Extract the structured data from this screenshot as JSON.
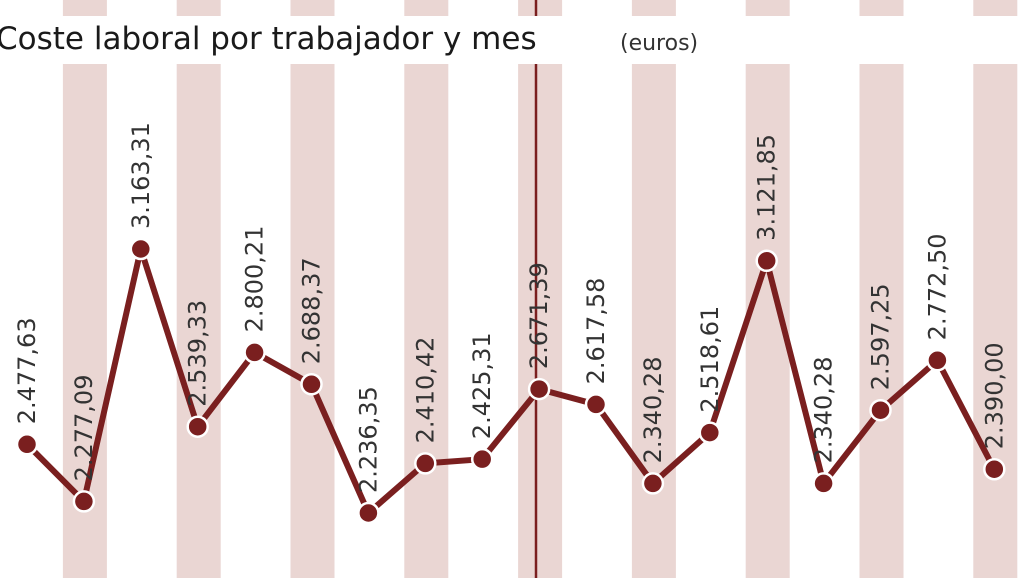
{
  "chart_data": {
    "type": "line",
    "title": "Coste laboral por trabajador y mes",
    "unit": "(euros)",
    "values": [
      2477.63,
      2277.09,
      3163.31,
      2539.33,
      2800.21,
      2688.37,
      2236.35,
      2410.42,
      2425.31,
      2671.39,
      2617.58,
      2340.28,
      2518.61,
      3121.85,
      2340.28,
      2597.25,
      2772.5,
      2390.0
    ],
    "labels": [
      "2.477,63",
      "2.277,09",
      "3.163,31",
      "2.539,33",
      "2.800,21",
      "2.688,37",
      "2.236,35",
      "2.410,42",
      "2.425,31",
      "2.671,39",
      "2.617,58",
      "2.340,28",
      "2.518,61",
      "3.121,85",
      "2.340,28",
      "2.597,25",
      "2.772,50",
      "2.390,00"
    ],
    "grid": false,
    "colors": {
      "line": "#7a1f1f",
      "band": "#ead6d3",
      "divider": "#7a1f1f",
      "marker_stroke": "#ffffff"
    }
  }
}
